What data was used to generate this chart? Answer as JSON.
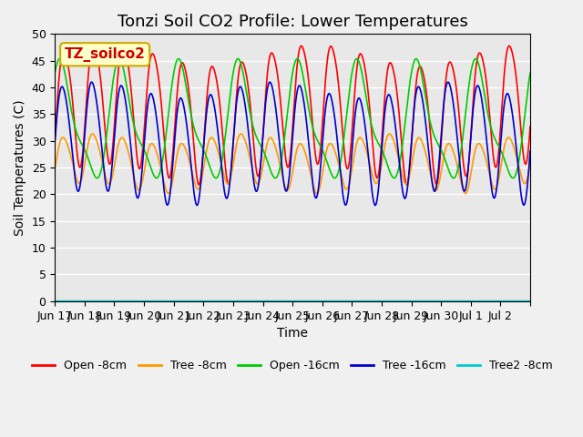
{
  "title": "Tonzi Soil CO2 Profile: Lower Temperatures",
  "xlabel": "Time",
  "ylabel": "Soil Temperatures (C)",
  "ylim": [
    0,
    50
  ],
  "yticks": [
    0,
    5,
    10,
    15,
    20,
    25,
    30,
    35,
    40,
    45,
    50
  ],
  "xtick_labels": [
    "Jun 17",
    "Jun 18",
    "Jun 19",
    "Jun 20",
    "Jun 21",
    "Jun 22",
    "Jun 23",
    "Jun 24",
    "Jun 25",
    "Jun 26",
    "Jun 27",
    "Jun 28",
    "Jun 29",
    "Jun 30",
    "Jul 1",
    "Jul 2"
  ],
  "legend_labels": [
    "Open -8cm",
    "Tree -8cm",
    "Open -16cm",
    "Tree -16cm",
    "Tree2 -8cm"
  ],
  "legend_colors": [
    "#ff0000",
    "#ff9900",
    "#00cc00",
    "#0000cc",
    "#00cccc"
  ],
  "annotation_text": "TZ_soilco2",
  "annotation_bg": "#ffffcc",
  "annotation_border": "#ccaa00",
  "plot_bg": "#e8e8e8",
  "fig_bg": "#f0f0f0",
  "grid_color": "#ffffff",
  "title_fontsize": 13,
  "label_fontsize": 10,
  "tick_fontsize": 9
}
